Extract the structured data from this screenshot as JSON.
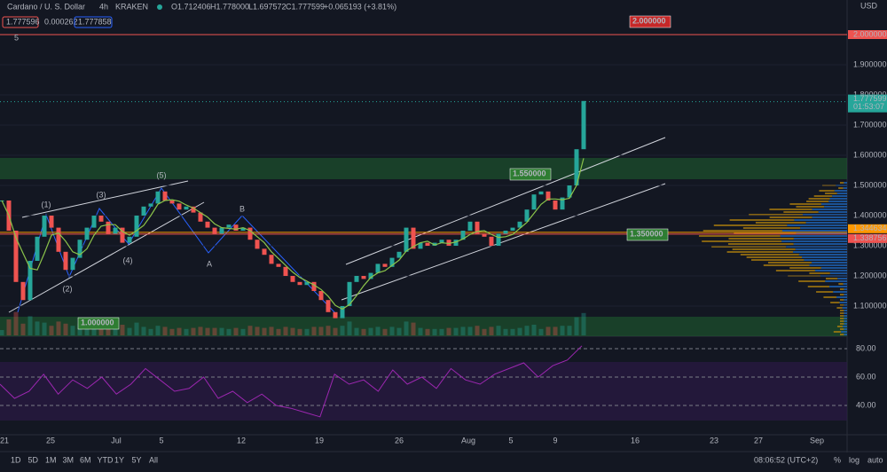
{
  "header": {
    "title": "Cardano / U. S. Dollar",
    "interval": "4h",
    "exchange": "KRAKEN",
    "open": "O1.712406",
    "high": "H1.778000",
    "low": "L1.697572",
    "close": "C1.777599",
    "change": "+0.065193 (+3.81%)",
    "sell": "1.777596",
    "spread": "0.000262",
    "buy": "1.777858",
    "indicator": "5",
    "currency": "USD"
  },
  "price_axis": [
    {
      "value": 2,
      "label": "2.000000"
    },
    {
      "value": 1.9,
      "label": "1.900000"
    },
    {
      "value": 1.8,
      "label": "1.800000"
    },
    {
      "value": 1.7,
      "label": "1.700000"
    },
    {
      "value": 1.6,
      "label": "1.600000"
    },
    {
      "value": 1.5,
      "label": "1.500000"
    },
    {
      "value": 1.4,
      "label": "1.400000"
    },
    {
      "value": 1.3,
      "label": "1.300000"
    },
    {
      "value": 1.2,
      "label": "1.200000"
    },
    {
      "value": 1.1,
      "label": "1.100000"
    }
  ],
  "last_price": {
    "value": 1.777599,
    "label": "1.777599",
    "countdown": "01:53:07"
  },
  "markers": [
    {
      "value": 1.344634,
      "label": "1.344634"
    },
    {
      "value": 1.338756,
      "label": "1.338756"
    }
  ],
  "annotations": [
    {
      "value": 2,
      "label": "2.000000"
    },
    {
      "value": 1.55,
      "label": "1.550000"
    },
    {
      "value": 1.35,
      "label": "1.350000"
    },
    {
      "value": 1.0,
      "label": "1.000000"
    }
  ],
  "waves": [
    "(1)",
    "(2)",
    "(3)",
    "(4)",
    "(5)",
    "A",
    "B"
  ],
  "rsi_axis": [
    {
      "value": 80,
      "label": "80.00"
    },
    {
      "value": 60,
      "label": "60.00"
    },
    {
      "value": 40,
      "label": "40.00"
    }
  ],
  "time_axis": [
    "21",
    "25",
    "Jul",
    "5",
    "12",
    "19",
    "26",
    "Aug",
    "5",
    "9",
    "16",
    "23",
    "27",
    "Sep"
  ],
  "close": [
    1.45,
    1.35,
    1.18,
    1.12,
    1.25,
    1.33,
    1.4,
    1.36,
    1.28,
    1.22,
    1.26,
    1.32,
    1.36,
    1.4,
    1.38,
    1.34,
    1.36,
    1.31,
    1.33,
    1.4,
    1.43,
    1.44,
    1.48,
    1.45,
    1.44,
    1.42,
    1.43,
    1.41,
    1.38,
    1.36,
    1.34,
    1.36,
    1.37,
    1.35,
    1.36,
    1.32,
    1.29,
    1.27,
    1.24,
    1.23,
    1.2,
    1.18,
    1.17,
    1.18,
    1.15,
    1.12,
    1.08,
    1.06,
    1.1,
    1.18,
    1.2,
    1.19,
    1.21,
    1.24,
    1.23,
    1.26,
    1.28,
    1.36,
    1.29,
    1.31,
    1.3,
    1.31,
    1.32,
    1.3,
    1.32,
    1.35,
    1.38,
    1.34,
    1.33,
    1.3,
    1.34,
    1.35,
    1.36,
    1.38,
    1.42,
    1.47,
    1.48,
    1.45,
    1.42,
    1.46,
    1.5,
    1.62,
    1.78
  ],
  "rsi": [
    55,
    45,
    50,
    62,
    48,
    58,
    52,
    60,
    48,
    55,
    66,
    58,
    50,
    52,
    60,
    45,
    50,
    42,
    48,
    40,
    38,
    35,
    32,
    62,
    55,
    58,
    50,
    65,
    55,
    60,
    52,
    66,
    58,
    55,
    62,
    66,
    70,
    60,
    68,
    72,
    82
  ],
  "toolbar": {
    "ranges": [
      "1D",
      "5D",
      "1M",
      "3M",
      "6M",
      "YTD",
      "1Y",
      "5Y",
      "All"
    ],
    "clock": "08:06:52 (UTC+2)",
    "percent": "%",
    "log": "log",
    "auto": "auto"
  }
}
